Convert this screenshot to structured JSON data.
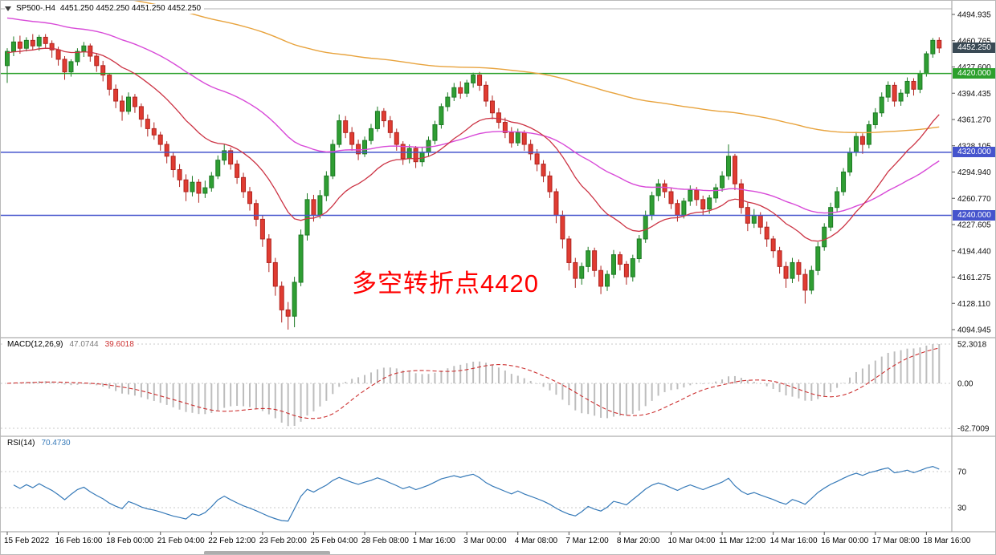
{
  "symbol_bar": {
    "title": "SP500-.H4",
    "ohlc": "4451.250 4452.250 4451.250 4452.250"
  },
  "annotation": {
    "text": "多空转折点4420",
    "color": "#ff0000"
  },
  "indicators": {
    "macd": {
      "label": "MACD(12,26,9)",
      "value_main": "47.0744",
      "value_signal": "39.6018",
      "y_ticks": [
        "52.3018",
        "0.00",
        "-62.7009"
      ]
    },
    "rsi": {
      "label": "RSI(14)",
      "value": "70.4730",
      "y_ticks": [
        "70",
        "30"
      ]
    }
  },
  "chart_data": {
    "type": "candlestick",
    "title": "SP500- H4 candlestick chart with MACD and RSI subpanels",
    "y_range": [
      4094.945,
      4494.935
    ],
    "y_ticks": [
      "4494.935",
      "4460.765",
      "4427.600",
      "4394.435",
      "4361.270",
      "4328.105",
      "4294.940",
      "4260.770",
      "4227.605",
      "4194.440",
      "4161.275",
      "4128.110",
      "4094.945"
    ],
    "x_labels": [
      "15 Feb 2022",
      "16 Feb 16:00",
      "18 Feb 00:00",
      "21 Feb 04:00",
      "22 Feb 12:00",
      "23 Feb 20:00",
      "25 Feb 04:00",
      "28 Feb 08:00",
      "1 Mar 16:00",
      "3 Mar 00:00",
      "4 Mar 08:00",
      "7 Mar 12:00",
      "8 Mar 20:00",
      "10 Mar 04:00",
      "11 Mar 12:00",
      "14 Mar 16:00",
      "16 Mar 00:00",
      "17 Mar 08:00",
      "18 Mar 16:00"
    ],
    "current_price": {
      "value": 4452.25,
      "label": "4452.250"
    },
    "levels": [
      {
        "price": 4420.0,
        "label": "4420.000",
        "color": "#2ca02c"
      },
      {
        "price": 4320.0,
        "label": "4320.000",
        "color": "#4554cd"
      },
      {
        "price": 4240.0,
        "label": "4240.000",
        "color": "#4554cd"
      }
    ],
    "macd_scale": {
      "max": 52.3018,
      "zero": 0.0,
      "min": -62.7009
    },
    "rsi_levels": [
      70,
      30
    ],
    "candles": [
      [
        4430,
        4452,
        4408,
        4448
      ],
      [
        4448,
        4467,
        4442,
        4460
      ],
      [
        4460,
        4468,
        4445,
        4452
      ],
      [
        4452,
        4466,
        4448,
        4462
      ],
      [
        4462,
        4470,
        4450,
        4455
      ],
      [
        4455,
        4469,
        4449,
        4466
      ],
      [
        4466,
        4470,
        4452,
        4458
      ],
      [
        4458,
        4462,
        4440,
        4450
      ],
      [
        4450,
        4454,
        4430,
        4438
      ],
      [
        4438,
        4442,
        4412,
        4422
      ],
      [
        4422,
        4438,
        4416,
        4435
      ],
      [
        4435,
        4452,
        4430,
        4448
      ],
      [
        4448,
        4460,
        4441,
        4455
      ],
      [
        4455,
        4458,
        4435,
        4442
      ],
      [
        4442,
        4446,
        4422,
        4430
      ],
      [
        4430,
        4436,
        4410,
        4418
      ],
      [
        4418,
        4420,
        4392,
        4400
      ],
      [
        4400,
        4406,
        4376,
        4385
      ],
      [
        4385,
        4392,
        4360,
        4372
      ],
      [
        4372,
        4396,
        4368,
        4390
      ],
      [
        4390,
        4394,
        4370,
        4378
      ],
      [
        4378,
        4382,
        4352,
        4362
      ],
      [
        4362,
        4368,
        4340,
        4350
      ],
      [
        4350,
        4358,
        4336,
        4342
      ],
      [
        4342,
        4346,
        4322,
        4330
      ],
      [
        4330,
        4334,
        4306,
        4315
      ],
      [
        4315,
        4320,
        4288,
        4298
      ],
      [
        4298,
        4305,
        4276,
        4285
      ],
      [
        4285,
        4292,
        4258,
        4270
      ],
      [
        4270,
        4290,
        4264,
        4282
      ],
      [
        4282,
        4286,
        4256,
        4268
      ],
      [
        4268,
        4284,
        4262,
        4275
      ],
      [
        4275,
        4295,
        4270,
        4290
      ],
      [
        4290,
        4316,
        4286,
        4310
      ],
      [
        4310,
        4330,
        4304,
        4322
      ],
      [
        4322,
        4326,
        4298,
        4305
      ],
      [
        4305,
        4310,
        4280,
        4288
      ],
      [
        4288,
        4294,
        4262,
        4270
      ],
      [
        4270,
        4276,
        4246,
        4255
      ],
      [
        4255,
        4260,
        4226,
        4235
      ],
      [
        4235,
        4240,
        4200,
        4210
      ],
      [
        4210,
        4216,
        4168,
        4180
      ],
      [
        4180,
        4186,
        4138,
        4150
      ],
      [
        4150,
        4156,
        4104,
        4120
      ],
      [
        4120,
        4130,
        4095,
        4112
      ],
      [
        4112,
        4162,
        4098,
        4155
      ],
      [
        4155,
        4222,
        4150,
        4215
      ],
      [
        4215,
        4268,
        4208,
        4260
      ],
      [
        4260,
        4266,
        4232,
        4240
      ],
      [
        4240,
        4272,
        4236,
        4265
      ],
      [
        4265,
        4296,
        4258,
        4290
      ],
      [
        4290,
        4336,
        4286,
        4330
      ],
      [
        4330,
        4368,
        4326,
        4360
      ],
      [
        4360,
        4366,
        4338,
        4345
      ],
      [
        4345,
        4352,
        4322,
        4330
      ],
      [
        4330,
        4336,
        4310,
        4318
      ],
      [
        4318,
        4340,
        4314,
        4335
      ],
      [
        4335,
        4356,
        4330,
        4350
      ],
      [
        4350,
        4378,
        4346,
        4372
      ],
      [
        4372,
        4376,
        4352,
        4360
      ],
      [
        4360,
        4366,
        4338,
        4345
      ],
      [
        4345,
        4350,
        4322,
        4330
      ],
      [
        4330,
        4334,
        4304,
        4312
      ],
      [
        4312,
        4330,
        4306,
        4325
      ],
      [
        4325,
        4328,
        4300,
        4308
      ],
      [
        4308,
        4326,
        4302,
        4320
      ],
      [
        4320,
        4340,
        4315,
        4335
      ],
      [
        4335,
        4360,
        4330,
        4355
      ],
      [
        4355,
        4382,
        4350,
        4378
      ],
      [
        4378,
        4396,
        4372,
        4390
      ],
      [
        4390,
        4408,
        4385,
        4402
      ],
      [
        4402,
        4410,
        4388,
        4395
      ],
      [
        4395,
        4412,
        4390,
        4408
      ],
      [
        4408,
        4421,
        4402,
        4418
      ],
      [
        4418,
        4422,
        4398,
        4405
      ],
      [
        4405,
        4410,
        4378,
        4385
      ],
      [
        4385,
        4392,
        4362,
        4370
      ],
      [
        4370,
        4376,
        4350,
        4358
      ],
      [
        4358,
        4364,
        4338,
        4345
      ],
      [
        4345,
        4352,
        4326,
        4332
      ],
      [
        4332,
        4350,
        4328,
        4345
      ],
      [
        4345,
        4348,
        4322,
        4330
      ],
      [
        4330,
        4336,
        4310,
        4318
      ],
      [
        4318,
        4324,
        4296,
        4305
      ],
      [
        4305,
        4310,
        4282,
        4290
      ],
      [
        4290,
        4296,
        4262,
        4270
      ],
      [
        4270,
        4274,
        4230,
        4240
      ],
      [
        4240,
        4246,
        4198,
        4210
      ],
      [
        4210,
        4214,
        4170,
        4180
      ],
      [
        4180,
        4186,
        4148,
        4160
      ],
      [
        4160,
        4180,
        4152,
        4175
      ],
      [
        4175,
        4200,
        4168,
        4195
      ],
      [
        4195,
        4199,
        4162,
        4170
      ],
      [
        4170,
        4176,
        4140,
        4150
      ],
      [
        4150,
        4170,
        4144,
        4165
      ],
      [
        4165,
        4196,
        4160,
        4190
      ],
      [
        4190,
        4194,
        4170,
        4178
      ],
      [
        4178,
        4182,
        4152,
        4162
      ],
      [
        4162,
        4190,
        4156,
        4185
      ],
      [
        4185,
        4215,
        4180,
        4210
      ],
      [
        4210,
        4246,
        4205,
        4240
      ],
      [
        4240,
        4270,
        4234,
        4265
      ],
      [
        4265,
        4286,
        4258,
        4280
      ],
      [
        4280,
        4285,
        4262,
        4270
      ],
      [
        4270,
        4274,
        4248,
        4255
      ],
      [
        4255,
        4260,
        4232,
        4240
      ],
      [
        4240,
        4262,
        4236,
        4258
      ],
      [
        4258,
        4278,
        4252,
        4272
      ],
      [
        4272,
        4276,
        4252,
        4260
      ],
      [
        4260,
        4265,
        4240,
        4248
      ],
      [
        4248,
        4266,
        4242,
        4262
      ],
      [
        4262,
        4280,
        4256,
        4275
      ],
      [
        4275,
        4296,
        4270,
        4290
      ],
      [
        4290,
        4330,
        4285,
        4315
      ],
      [
        4315,
        4318,
        4272,
        4280
      ],
      [
        4280,
        4286,
        4242,
        4250
      ],
      [
        4250,
        4256,
        4220,
        4230
      ],
      [
        4230,
        4248,
        4224,
        4240
      ],
      [
        4240,
        4244,
        4216,
        4225
      ],
      [
        4225,
        4232,
        4200,
        4210
      ],
      [
        4210,
        4214,
        4186,
        4195
      ],
      [
        4195,
        4200,
        4166,
        4175
      ],
      [
        4175,
        4181,
        4148,
        4160
      ],
      [
        4160,
        4186,
        4154,
        4180
      ],
      [
        4180,
        4184,
        4156,
        4165
      ],
      [
        4165,
        4172,
        4128,
        4145
      ],
      [
        4145,
        4176,
        4140,
        4170
      ],
      [
        4170,
        4206,
        4164,
        4200
      ],
      [
        4200,
        4230,
        4195,
        4225
      ],
      [
        4225,
        4256,
        4220,
        4250
      ],
      [
        4250,
        4276,
        4244,
        4270
      ],
      [
        4270,
        4300,
        4265,
        4295
      ],
      [
        4295,
        4326,
        4290,
        4320
      ],
      [
        4320,
        4346,
        4315,
        4340
      ],
      [
        4340,
        4344,
        4318,
        4330
      ],
      [
        4330,
        4360,
        4325,
        4355
      ],
      [
        4355,
        4376,
        4350,
        4370
      ],
      [
        4370,
        4396,
        4365,
        4390
      ],
      [
        4390,
        4410,
        4384,
        4405
      ],
      [
        4405,
        4409,
        4378,
        4385
      ],
      [
        4385,
        4400,
        4379,
        4395
      ],
      [
        4395,
        4415,
        4390,
        4410
      ],
      [
        4410,
        4414,
        4392,
        4400
      ],
      [
        4400,
        4424,
        4395,
        4420
      ],
      [
        4420,
        4448,
        4416,
        4445
      ],
      [
        4445,
        4465,
        4440,
        4462
      ],
      [
        4462,
        4466,
        4446,
        4452.3
      ]
    ]
  },
  "colors": {
    "candle_up": "#2f9e33",
    "candle_up_border": "#1d7a24",
    "candle_down": "#e03c32",
    "candle_down_border": "#b02420",
    "ma_fast": "#cc3344",
    "ma_mid": "#d84ad8",
    "ma_slow": "#e8a33d",
    "macd_histogram": "#bdbdbd",
    "macd_signal": "#cc2f2f",
    "macd_value_text": "#7a7a7a",
    "rsi_line": "#3579b8",
    "current_badge_bg": "#3a4a55",
    "grid_dashed": "#c8c8c8",
    "axis_text": "#111111",
    "separator": "#9a9a9a"
  }
}
